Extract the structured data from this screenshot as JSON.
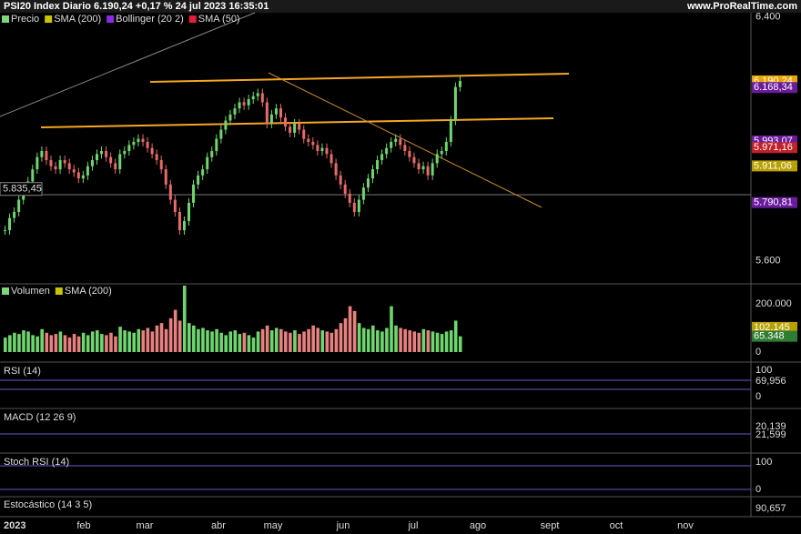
{
  "header": {
    "title": "PSI20 Index Diario 6.190,24 +0,17 % 24 jul 2023 16:35:01",
    "site": "www.ProRealTime.com"
  },
  "price_panel": {
    "legend": [
      "Precio",
      "SMA (200)",
      "Bollinger (20 2)",
      "SMA (50)"
    ],
    "ylim": [
      5524,
      6414
    ],
    "ticks": [
      {
        "value": 6400,
        "label": "6.400"
      },
      {
        "value": 5600,
        "label": "5.600"
      }
    ],
    "value_tags": [
      {
        "value": 6190.24,
        "label": "6.190,24",
        "color": "#e8a400"
      },
      {
        "value": 6168.34,
        "label": "6.168,34",
        "color": "#6a1b9a"
      },
      {
        "value": 5993.07,
        "label": "5.993,07",
        "color": "#6a1b9a"
      },
      {
        "value": 5971.16,
        "label": "5.971,16",
        "color": "#c0202a"
      },
      {
        "value": 5911.06,
        "label": "5.911,06",
        "color": "#b8a000"
      },
      {
        "value": 5790.81,
        "label": "5.790,81",
        "color": "#6a1b9a"
      }
    ],
    "cursor": {
      "value": 5835.45,
      "label": "5.835,45"
    },
    "closes": [
      5700,
      5740,
      5760,
      5800,
      5830,
      5860,
      5900,
      5940,
      5960,
      5930,
      5910,
      5900,
      5930,
      5920,
      5900,
      5890,
      5870,
      5880,
      5910,
      5930,
      5950,
      5960,
      5940,
      5920,
      5900,
      5950,
      5960,
      5980,
      5990,
      6000,
      5990,
      5970,
      5950,
      5930,
      5900,
      5850,
      5800,
      5760,
      5700,
      5730,
      5790,
      5850,
      5880,
      5900,
      5940,
      5960,
      6000,
      6030,
      6060,
      6080,
      6100,
      6120,
      6110,
      6130,
      6140,
      6150,
      6120,
      6050,
      6080,
      6100,
      6070,
      6040,
      6020,
      6050,
      6030,
      6000,
      5990,
      5980,
      5960,
      5970,
      5950,
      5920,
      5880,
      5850,
      5820,
      5790,
      5760,
      5800,
      5840,
      5870,
      5900,
      5930,
      5950,
      5970,
      5990,
      6000,
      5980,
      5960,
      5940,
      5920,
      5900,
      5910,
      5880,
      5920,
      5950,
      5960,
      5990,
      6060,
      6170,
      6190.24
    ]
  },
  "volume_panel": {
    "legend": [
      "Volumen",
      "SMA (200)"
    ],
    "ylim": [
      0,
      275000
    ],
    "ticks": [
      {
        "value": 200000,
        "label": "200.000"
      },
      {
        "value": 0,
        "label": "0"
      }
    ],
    "value_tags": [
      {
        "value": 102145,
        "label": "102.145",
        "color": "#b8a000"
      },
      {
        "value": 65348,
        "label": "65.348",
        "color": "#2e7d32"
      }
    ],
    "volumes": [
      60000,
      70000,
      80000,
      75000,
      90000,
      85000,
      70000,
      65000,
      95000,
      80000,
      70000,
      75000,
      85000,
      70000,
      60000,
      75000,
      65000,
      80000,
      70000,
      85000,
      90000,
      75000,
      70000,
      80000,
      65000,
      105000,
      90000,
      85000,
      80000,
      95000,
      90000,
      100000,
      85000,
      110000,
      120000,
      95000,
      140000,
      175000,
      130000,
      275000,
      120000,
      110000,
      95000,
      100000,
      90000,
      85000,
      95000,
      80000,
      70000,
      85000,
      90000,
      75000,
      80000,
      70000,
      60000,
      85000,
      95000,
      110000,
      90000,
      100000,
      95000,
      85000,
      80000,
      90000,
      75000,
      85000,
      95000,
      110000,
      100000,
      90000,
      85000,
      80000,
      95000,
      120000,
      140000,
      190000,
      170000,
      120000,
      100000,
      95000,
      110000,
      90000,
      85000,
      100000,
      190000,
      110000,
      100000,
      95000,
      90000,
      85000,
      80000,
      95000,
      90000,
      85000,
      80000,
      75000,
      85000,
      90000,
      130000,
      65348
    ]
  },
  "rsi_panel": {
    "legend": "RSI (14)",
    "labels": [
      "100",
      "69,956",
      "0"
    ]
  },
  "macd_panel": {
    "legend": "MACD (12 26 9)",
    "labels": [
      "20,139",
      "21,599"
    ]
  },
  "stochrsi_panel": {
    "legend": "Stoch RSI (14)",
    "labels": [
      "100",
      "0"
    ]
  },
  "stoch_panel": {
    "legend": "Estocástico (14 3 5)",
    "labels": [
      "90,657"
    ]
  },
  "time_axis": {
    "year": "2023",
    "months": [
      "feb",
      "mar",
      "abr",
      "may",
      "jun",
      "jul",
      "ago",
      "sept",
      "oct",
      "nov"
    ]
  }
}
